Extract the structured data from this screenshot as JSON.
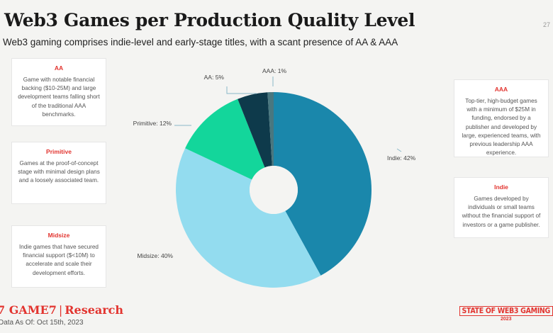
{
  "header": {
    "title": "Web3 Games per Production Quality Level",
    "subtitle": "Web3 gaming comprises indie-level and early-stage titles, with a scant presence of AA & AAA",
    "page_number": "27"
  },
  "cards": {
    "aa": {
      "title": "AA",
      "desc": "Game with notable financial backing ($10-25M) and large development teams falling short of the traditional AAA benchmarks."
    },
    "primitive": {
      "title": "Primitive",
      "desc": "Games at the proof-of-concept stage with minimal design plans and a loosely associated team."
    },
    "midsize": {
      "title": "Midsize",
      "desc": "Indie games that have secured financial support ($<10M) to accelerate and scale their development efforts."
    },
    "aaa": {
      "title": "AAA",
      "desc": "Top-tier, high-budget games with a minimum of $25M in funding, endorsed by a publisher and developed by large, experienced teams, with previous leadership AAA experience."
    },
    "indie": {
      "title": "Indie",
      "desc": "Games developed by individuals or small teams without the financial support of investors or a game publisher."
    }
  },
  "footer": {
    "logo_brand": "GAME7",
    "logo_section": "Research",
    "date": "Data As Of: Oct 15th, 2023",
    "badge_line1": "STATE OF WEB3 GAMING",
    "badge_line2": "2023"
  },
  "colors": {
    "accent": "#e2342f",
    "indie": "#1a87ab",
    "midsize": "#93dcef",
    "primitive": "#13d69b",
    "aa": "#0e3a4b",
    "aaa": "#49777f"
  },
  "chart_data": {
    "type": "pie",
    "donut": true,
    "start": "top",
    "direction": "clockwise",
    "slices": [
      {
        "label": "Indie",
        "value": 42,
        "display": "Indie: 42%",
        "color": "#1a87ab"
      },
      {
        "label": "Midsize",
        "value": 40,
        "display": "Midsize: 40%",
        "color": "#93dcef"
      },
      {
        "label": "Primitive",
        "value": 12,
        "display": "Primitive: 12%",
        "color": "#13d69b"
      },
      {
        "label": "AA",
        "value": 5,
        "display": "AA: 5%",
        "color": "#0e3a4b"
      },
      {
        "label": "AAA",
        "value": 1,
        "display": "AAA: 1%",
        "color": "#49777f"
      }
    ]
  }
}
